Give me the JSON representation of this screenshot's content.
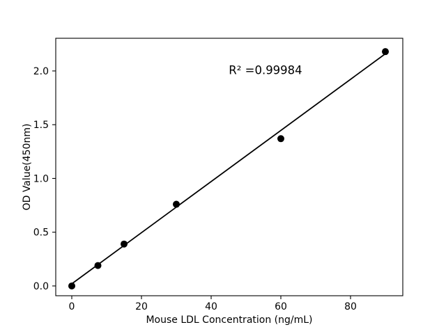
{
  "chart_data": {
    "type": "scatter",
    "title": "",
    "xlabel": "Mouse LDL Concentration (ng/mL)",
    "ylabel": "OD Value(450nm)",
    "x": [
      0,
      7.5,
      15,
      30,
      60,
      90
    ],
    "y": [
      0.0,
      0.19,
      0.39,
      0.76,
      1.37,
      2.18
    ],
    "fit_line": {
      "x0": 0,
      "y0": 0.02,
      "x1": 90,
      "y1": 2.16
    },
    "r_squared": 0.99984,
    "annotation": {
      "text": "R² =0.99984",
      "x": 55.6,
      "y": 1.97
    },
    "xticks": [
      "0",
      "20",
      "40",
      "60",
      "80"
    ],
    "xtick_values": [
      0,
      20,
      40,
      60,
      80
    ],
    "yticks": [
      "0.0",
      "0.5",
      "1.0",
      "1.5",
      "2.0"
    ],
    "ytick_values": [
      0,
      0.5,
      1.0,
      1.5,
      2.0
    ],
    "xlim": [
      -4.6,
      95.0
    ],
    "ylim": [
      -0.091,
      2.304
    ],
    "grid": false,
    "legend": "none",
    "colors": {
      "marker": "#000000",
      "line": "#000000",
      "axis": "#000000",
      "text": "#000000",
      "background": "#ffffff"
    }
  }
}
